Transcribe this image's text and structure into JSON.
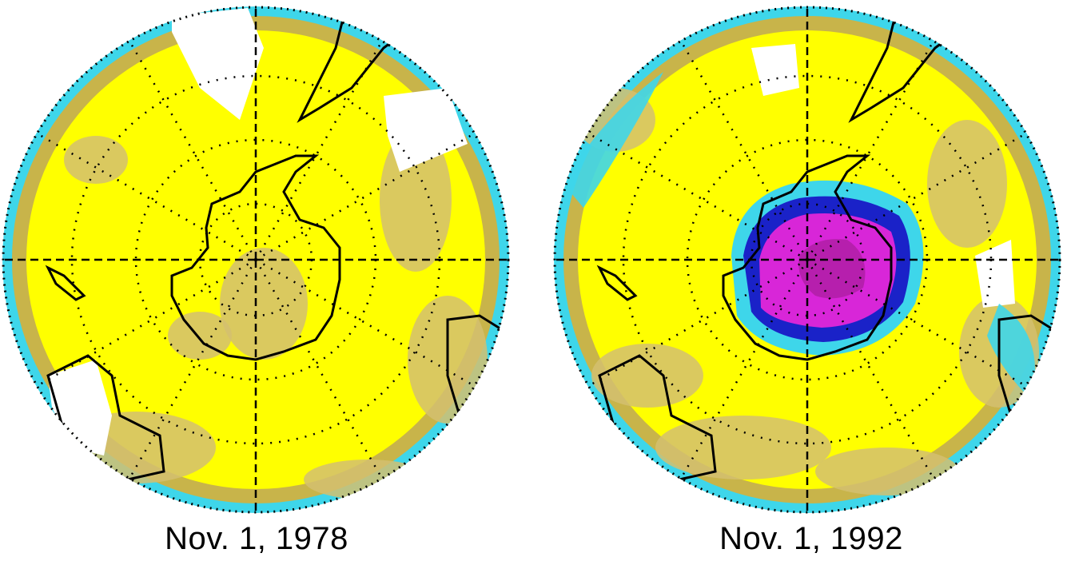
{
  "maps": [
    {
      "id": "left",
      "caption": "Nov. 1, 1978",
      "ozone_hole": false
    },
    {
      "id": "right",
      "caption": "Nov. 1, 1992",
      "ozone_hole": true
    }
  ],
  "colors": {
    "background": "#ffffff",
    "ozone_high": "#ffff00",
    "ozone_mid": "#c8b44a",
    "ozone_tan": "#d4c070",
    "ozone_cyan": "#3ed6ea",
    "ozone_blue": "#1a22c8",
    "ozone_purple": "#d826d8",
    "ozone_magenta_dark": "#9a1a8a",
    "coastline": "#000000",
    "no_data": "#ffffff"
  }
}
